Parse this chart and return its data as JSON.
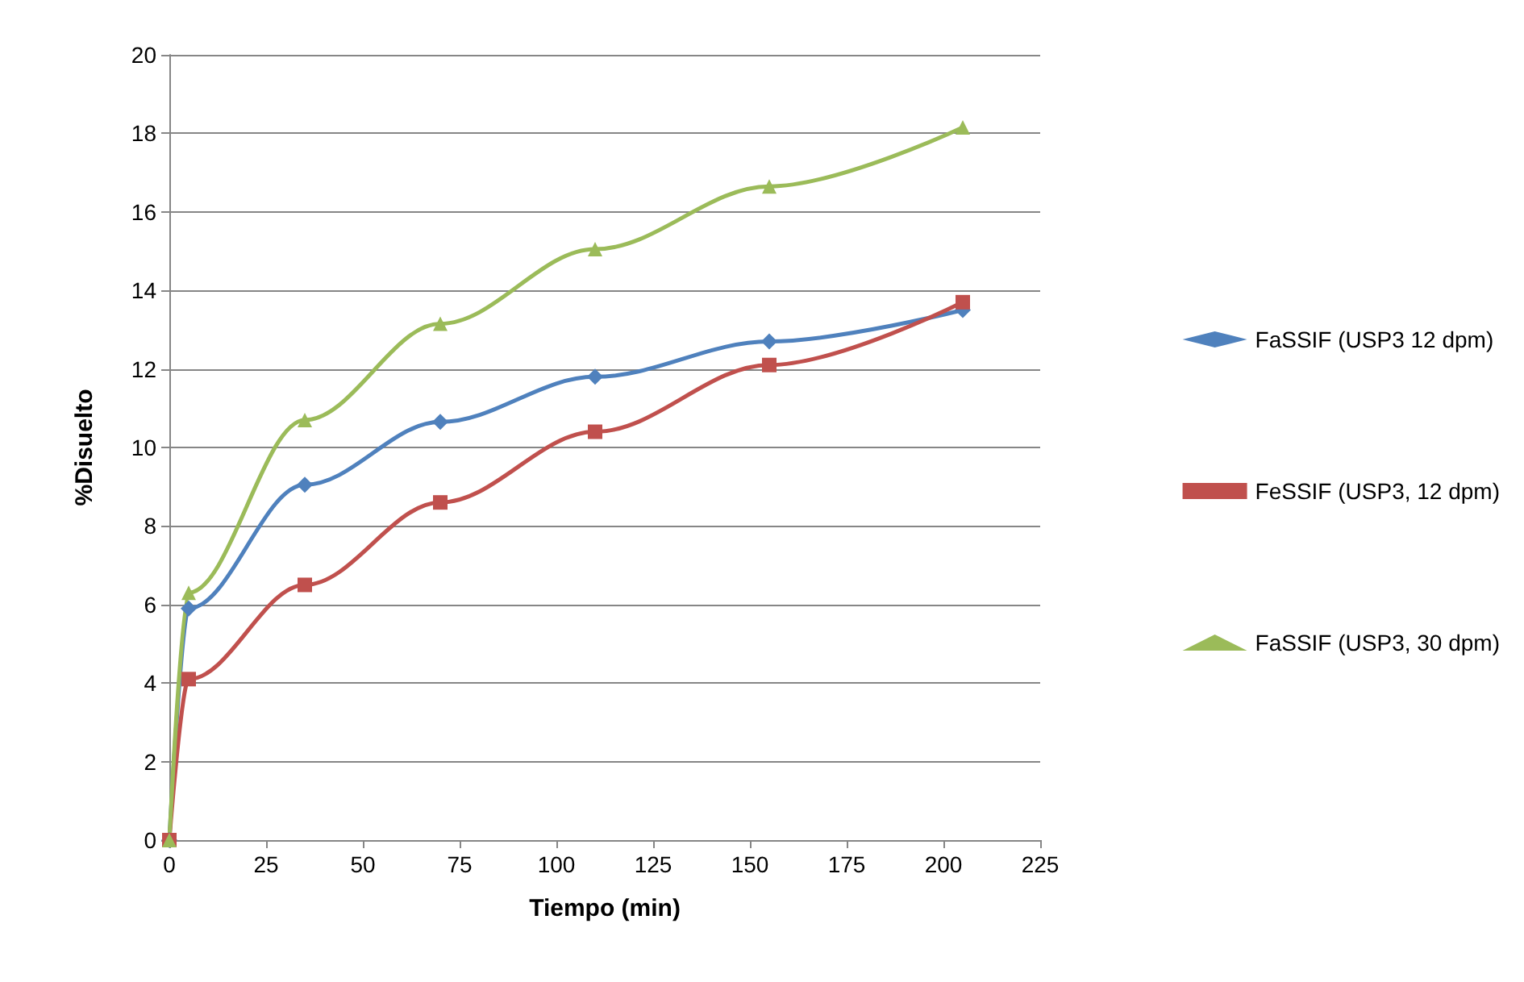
{
  "chart_data": {
    "type": "line",
    "xlabel": "Tiempo (min)",
    "ylabel": "%Disuelto",
    "xlim": [
      0,
      225
    ],
    "xticks": [
      0,
      25,
      50,
      75,
      100,
      125,
      150,
      175,
      200,
      225
    ],
    "ylim": [
      0,
      20
    ],
    "yticks": [
      0,
      2,
      4,
      6,
      8,
      10,
      12,
      14,
      16,
      18,
      20
    ],
    "grid": "y",
    "legend": "right",
    "series": [
      {
        "name": "FaSSIF (USP3 12 dpm)",
        "color": "#4f81bd",
        "marker": "diamond",
        "x": [
          0,
          5,
          35,
          70,
          110,
          155,
          205
        ],
        "values": [
          0,
          5.9,
          9.05,
          10.65,
          11.8,
          12.7,
          13.5
        ]
      },
      {
        "name": "FeSSIF (USP3, 12 dpm)",
        "color": "#c0504d",
        "marker": "square",
        "x": [
          0,
          5,
          35,
          70,
          110,
          155,
          205
        ],
        "values": [
          0,
          4.1,
          6.5,
          8.6,
          10.4,
          12.1,
          13.7
        ]
      },
      {
        "name": "FaSSIF (USP3, 30 dpm)",
        "color": "#9bbb59",
        "marker": "triangle",
        "x": [
          0,
          5,
          35,
          70,
          110,
          155,
          205
        ],
        "values": [
          0,
          6.3,
          10.7,
          13.15,
          15.05,
          16.65,
          18.15
        ]
      }
    ]
  }
}
